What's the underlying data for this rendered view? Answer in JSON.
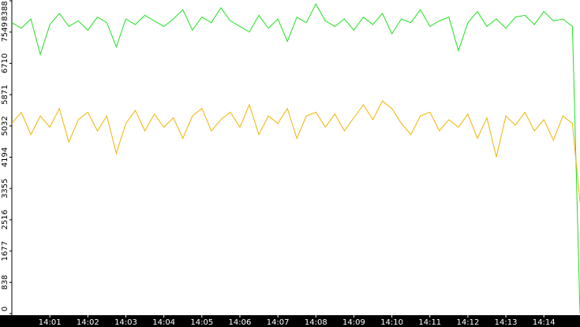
{
  "chart_data": {
    "type": "line",
    "x": [
      0,
      0.25,
      0.5,
      0.75,
      1,
      1.25,
      1.5,
      1.75,
      2,
      2.25,
      2.5,
      2.75,
      3,
      3.25,
      3.5,
      3.75,
      4,
      4.25,
      4.5,
      4.75,
      5,
      5.25,
      5.5,
      5.75,
      6,
      6.25,
      6.5,
      6.75,
      7,
      7.25,
      7.5,
      7.75,
      8,
      8.25,
      8.5,
      8.75,
      9,
      9.25,
      9.5,
      9.75,
      10,
      10.25,
      10.5,
      10.75,
      11,
      11.25,
      11.5,
      11.75,
      12,
      12.25,
      12.5,
      12.75,
      13,
      13.25,
      13.5,
      13.75,
      14,
      14.25,
      14.5,
      14.75,
      14.95
    ],
    "series": [
      {
        "name": "green",
        "color": "#1fe01f",
        "values": [
          7800,
          7650,
          7900,
          6950,
          7750,
          8050,
          7700,
          7850,
          7600,
          7950,
          7800,
          7150,
          7900,
          7750,
          8000,
          7850,
          7700,
          7900,
          8150,
          7600,
          7950,
          7800,
          8200,
          7850,
          7700,
          7550,
          8000,
          7650,
          7900,
          7300,
          7950,
          7800,
          8300,
          7850,
          7700,
          7900,
          7600,
          7950,
          7750,
          8050,
          7500,
          7900,
          7800,
          8150,
          7700,
          7850,
          7950,
          7050,
          7800,
          8100,
          7700,
          7900,
          7650,
          7950,
          8000,
          7750,
          8100,
          7850,
          7900,
          7700,
          0
        ]
      },
      {
        "name": "yellow",
        "color": "#f0b400",
        "values": [
          5100,
          5400,
          4800,
          5300,
          5000,
          5500,
          4600,
          5200,
          5400,
          4900,
          5300,
          4300,
          5100,
          5450,
          4900,
          5350,
          5000,
          5250,
          4700,
          5300,
          5500,
          4900,
          5200,
          5400,
          5000,
          5600,
          4800,
          5300,
          5100,
          5500,
          4700,
          5300,
          5400,
          5000,
          5350,
          4900,
          5250,
          5600,
          5200,
          5700,
          5500,
          5100,
          4800,
          5300,
          5400,
          4900,
          5200,
          5000,
          5350,
          4700,
          5250,
          4200,
          5300,
          5050,
          5400,
          4900,
          5200,
          4650,
          5300,
          5100,
          3000
        ]
      }
    ],
    "xlim": [
      0,
      14.95
    ],
    "xticks": [
      {
        "value": 1,
        "label": "14:01"
      },
      {
        "value": 2,
        "label": "14:02"
      },
      {
        "value": 3,
        "label": "14:03"
      },
      {
        "value": 4,
        "label": "14:04"
      },
      {
        "value": 5,
        "label": "14:05"
      },
      {
        "value": 6,
        "label": "14:06"
      },
      {
        "value": 7,
        "label": "14:07"
      },
      {
        "value": 8,
        "label": "14:08"
      },
      {
        "value": 9,
        "label": "14:09"
      },
      {
        "value": 10,
        "label": "14:10"
      },
      {
        "value": 11,
        "label": "14:11"
      },
      {
        "value": 12,
        "label": "14:12"
      },
      {
        "value": 13,
        "label": "14:13"
      },
      {
        "value": 14,
        "label": "14:14"
      }
    ],
    "ylim": [
      0,
      8388
    ],
    "yticks": [
      0,
      838,
      1677,
      2516,
      3355,
      4194,
      5032,
      5871,
      6710,
      7549,
      8388
    ]
  }
}
